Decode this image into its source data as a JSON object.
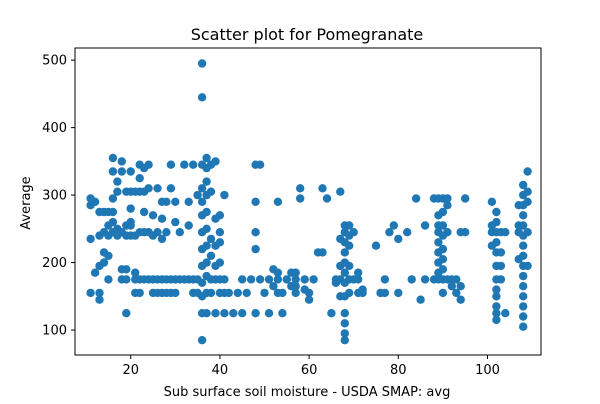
{
  "chart_data": {
    "type": "scatter",
    "title": "Scatter plot for Pomegranate",
    "xlabel": "Sub surface soil moisture - USDA SMAP: avg",
    "ylabel": "Average",
    "xlim": [
      7.5,
      112
    ],
    "ylim": [
      63,
      518
    ],
    "x_ticks": [
      20,
      40,
      60,
      80,
      100
    ],
    "y_ticks": [
      100,
      200,
      300,
      400,
      500
    ],
    "grid": false,
    "marker_color": "#1f77b4",
    "points": [
      [
        11,
        155
      ],
      [
        11,
        235
      ],
      [
        11,
        285
      ],
      [
        11,
        295
      ],
      [
        12,
        290
      ],
      [
        12,
        185
      ],
      [
        13,
        145
      ],
      [
        13,
        155
      ],
      [
        13,
        195
      ],
      [
        13,
        240
      ],
      [
        13,
        275
      ],
      [
        14,
        200
      ],
      [
        14,
        215
      ],
      [
        14,
        245
      ],
      [
        14,
        275
      ],
      [
        15,
        175
      ],
      [
        15,
        210
      ],
      [
        15,
        240
      ],
      [
        15,
        255
      ],
      [
        15,
        275
      ],
      [
        16,
        245
      ],
      [
        16,
        260
      ],
      [
        16,
        275
      ],
      [
        16,
        295
      ],
      [
        16,
        335
      ],
      [
        16,
        355
      ],
      [
        17,
        240
      ],
      [
        17,
        250
      ],
      [
        17,
        305
      ],
      [
        17,
        320
      ],
      [
        18,
        175
      ],
      [
        18,
        190
      ],
      [
        18,
        245
      ],
      [
        18,
        335
      ],
      [
        18,
        350
      ],
      [
        19,
        125
      ],
      [
        19,
        175
      ],
      [
        19,
        190
      ],
      [
        19,
        240
      ],
      [
        19,
        255
      ],
      [
        19,
        305
      ],
      [
        20,
        240
      ],
      [
        20,
        255
      ],
      [
        20,
        260
      ],
      [
        20,
        280
      ],
      [
        20,
        305
      ],
      [
        20,
        335
      ],
      [
        21,
        175
      ],
      [
        21,
        185
      ],
      [
        21,
        155
      ],
      [
        21,
        240
      ],
      [
        21,
        305
      ],
      [
        22,
        155
      ],
      [
        22,
        175
      ],
      [
        22,
        245
      ],
      [
        22,
        305
      ],
      [
        22,
        325
      ],
      [
        22,
        345
      ],
      [
        23,
        175
      ],
      [
        23,
        245
      ],
      [
        23,
        275
      ],
      [
        23,
        305
      ],
      [
        23,
        340
      ],
      [
        24,
        175
      ],
      [
        24,
        245
      ],
      [
        24,
        310
      ],
      [
        24,
        345
      ],
      [
        25,
        155
      ],
      [
        25,
        175
      ],
      [
        25,
        240
      ],
      [
        25,
        270
      ],
      [
        26,
        155
      ],
      [
        26,
        175
      ],
      [
        26,
        245
      ],
      [
        26,
        310
      ],
      [
        27,
        175
      ],
      [
        27,
        155
      ],
      [
        27,
        235
      ],
      [
        27,
        265
      ],
      [
        27,
        290
      ],
      [
        28,
        155
      ],
      [
        28,
        175
      ],
      [
        28,
        245
      ],
      [
        28,
        290
      ],
      [
        29,
        155
      ],
      [
        29,
        175
      ],
      [
        29,
        310
      ],
      [
        29,
        345
      ],
      [
        30,
        155
      ],
      [
        30,
        175
      ],
      [
        30,
        260
      ],
      [
        30,
        290
      ],
      [
        31,
        175
      ],
      [
        31,
        245
      ],
      [
        32,
        175
      ],
      [
        32,
        345
      ],
      [
        33,
        175
      ],
      [
        33,
        255
      ],
      [
        33,
        290
      ],
      [
        34,
        155
      ],
      [
        34,
        175
      ],
      [
        34,
        345
      ],
      [
        35,
        175
      ],
      [
        35,
        155
      ],
      [
        35,
        300
      ],
      [
        36,
        125
      ],
      [
        36,
        150
      ],
      [
        36,
        170
      ],
      [
        36,
        195
      ],
      [
        36,
        220
      ],
      [
        36,
        245
      ],
      [
        36,
        270
      ],
      [
        36,
        290
      ],
      [
        36,
        310
      ],
      [
        36,
        345
      ],
      [
        36,
        85
      ],
      [
        36,
        445
      ],
      [
        36,
        495
      ],
      [
        37,
        125
      ],
      [
        37,
        155
      ],
      [
        37,
        180
      ],
      [
        37,
        200
      ],
      [
        37,
        225
      ],
      [
        37,
        250
      ],
      [
        37,
        275
      ],
      [
        37,
        300
      ],
      [
        37,
        320
      ],
      [
        37,
        340
      ],
      [
        37,
        355
      ],
      [
        38,
        155
      ],
      [
        38,
        175
      ],
      [
        38,
        210
      ],
      [
        38,
        235
      ],
      [
        38,
        305
      ],
      [
        38,
        345
      ],
      [
        39,
        125
      ],
      [
        39,
        175
      ],
      [
        39,
        195
      ],
      [
        39,
        225
      ],
      [
        39,
        265
      ],
      [
        39,
        350
      ],
      [
        40,
        155
      ],
      [
        40,
        175
      ],
      [
        40,
        200
      ],
      [
        40,
        230
      ],
      [
        40,
        245
      ],
      [
        40,
        270
      ],
      [
        41,
        125
      ],
      [
        41,
        155
      ],
      [
        41,
        175
      ],
      [
        41,
        300
      ],
      [
        42,
        155
      ],
      [
        43,
        125
      ],
      [
        44,
        155
      ],
      [
        45,
        125
      ],
      [
        45,
        175
      ],
      [
        46,
        155
      ],
      [
        47,
        175
      ],
      [
        48,
        125
      ],
      [
        48,
        220
      ],
      [
        48,
        245
      ],
      [
        48,
        290
      ],
      [
        48,
        345
      ],
      [
        49,
        175
      ],
      [
        49,
        345
      ],
      [
        50,
        155
      ],
      [
        51,
        175
      ],
      [
        51,
        125
      ],
      [
        52,
        165
      ],
      [
        52,
        190
      ],
      [
        53,
        155
      ],
      [
        53,
        175
      ],
      [
        53,
        185
      ],
      [
        53,
        290
      ],
      [
        54,
        125
      ],
      [
        54,
        155
      ],
      [
        55,
        175
      ],
      [
        56,
        165
      ],
      [
        56,
        185
      ],
      [
        57,
        155
      ],
      [
        57,
        165
      ],
      [
        57,
        175
      ],
      [
        57,
        185
      ],
      [
        58,
        295
      ],
      [
        58,
        310
      ],
      [
        59,
        160
      ],
      [
        59,
        175
      ],
      [
        60,
        145
      ],
      [
        60,
        155
      ],
      [
        61,
        175
      ],
      [
        62,
        215
      ],
      [
        63,
        215
      ],
      [
        63,
        310
      ],
      [
        64,
        295
      ],
      [
        65,
        125
      ],
      [
        66,
        170
      ],
      [
        66,
        175
      ],
      [
        67,
        150
      ],
      [
        67,
        175
      ],
      [
        67,
        195
      ],
      [
        67,
        235
      ],
      [
        67,
        305
      ],
      [
        68,
        85
      ],
      [
        68,
        95
      ],
      [
        68,
        110
      ],
      [
        68,
        125
      ],
      [
        68,
        150
      ],
      [
        68,
        170
      ],
      [
        68,
        185
      ],
      [
        68,
        200
      ],
      [
        68,
        215
      ],
      [
        68,
        230
      ],
      [
        68,
        245
      ],
      [
        68,
        255
      ],
      [
        69,
        155
      ],
      [
        69,
        175
      ],
      [
        69,
        195
      ],
      [
        69,
        225
      ],
      [
        69,
        240
      ],
      [
        69,
        255
      ],
      [
        70,
        245
      ],
      [
        70,
        175
      ],
      [
        71,
        155
      ],
      [
        71,
        175
      ],
      [
        71,
        185
      ],
      [
        72,
        160
      ],
      [
        72,
        155
      ],
      [
        75,
        225
      ],
      [
        76,
        155
      ],
      [
        77,
        155
      ],
      [
        77,
        175
      ],
      [
        78,
        245
      ],
      [
        79,
        255
      ],
      [
        80,
        155
      ],
      [
        80,
        235
      ],
      [
        82,
        245
      ],
      [
        83,
        175
      ],
      [
        84,
        295
      ],
      [
        85,
        145
      ],
      [
        86,
        175
      ],
      [
        86,
        255
      ],
      [
        88,
        175
      ],
      [
        88,
        295
      ],
      [
        89,
        175
      ],
      [
        89,
        185
      ],
      [
        89,
        200
      ],
      [
        89,
        215
      ],
      [
        89,
        230
      ],
      [
        89,
        245
      ],
      [
        89,
        255
      ],
      [
        89,
        270
      ],
      [
        89,
        295
      ],
      [
        90,
        155
      ],
      [
        90,
        175
      ],
      [
        90,
        190
      ],
      [
        90,
        205
      ],
      [
        90,
        220
      ],
      [
        90,
        240
      ],
      [
        90,
        255
      ],
      [
        90,
        275
      ],
      [
        90,
        295
      ],
      [
        91,
        175
      ],
      [
        91,
        245
      ],
      [
        91,
        285
      ],
      [
        91,
        295
      ],
      [
        92,
        175
      ],
      [
        92,
        165
      ],
      [
        93,
        175
      ],
      [
        93,
        155
      ],
      [
        94,
        145
      ],
      [
        94,
        165
      ],
      [
        94,
        245
      ],
      [
        95,
        245
      ],
      [
        95,
        295
      ],
      [
        101,
        225
      ],
      [
        101,
        245
      ],
      [
        101,
        255
      ],
      [
        101,
        290
      ],
      [
        102,
        115
      ],
      [
        102,
        125
      ],
      [
        102,
        135
      ],
      [
        102,
        150
      ],
      [
        102,
        160
      ],
      [
        102,
        175
      ],
      [
        102,
        195
      ],
      [
        102,
        215
      ],
      [
        102,
        230
      ],
      [
        102,
        245
      ],
      [
        102,
        260
      ],
      [
        102,
        275
      ],
      [
        103,
        175
      ],
      [
        103,
        195
      ],
      [
        103,
        215
      ],
      [
        103,
        245
      ],
      [
        104,
        125
      ],
      [
        104,
        245
      ],
      [
        107,
        205
      ],
      [
        107,
        245
      ],
      [
        107,
        255
      ],
      [
        107,
        285
      ],
      [
        108,
        105
      ],
      [
        108,
        120
      ],
      [
        108,
        135
      ],
      [
        108,
        150
      ],
      [
        108,
        165
      ],
      [
        108,
        180
      ],
      [
        108,
        195
      ],
      [
        108,
        210
      ],
      [
        108,
        225
      ],
      [
        108,
        240
      ],
      [
        108,
        255
      ],
      [
        108,
        270
      ],
      [
        108,
        285
      ],
      [
        108,
        300
      ],
      [
        108,
        315
      ],
      [
        109,
        195
      ],
      [
        109,
        245
      ],
      [
        109,
        290
      ],
      [
        109,
        305
      ],
      [
        109,
        335
      ]
    ]
  }
}
